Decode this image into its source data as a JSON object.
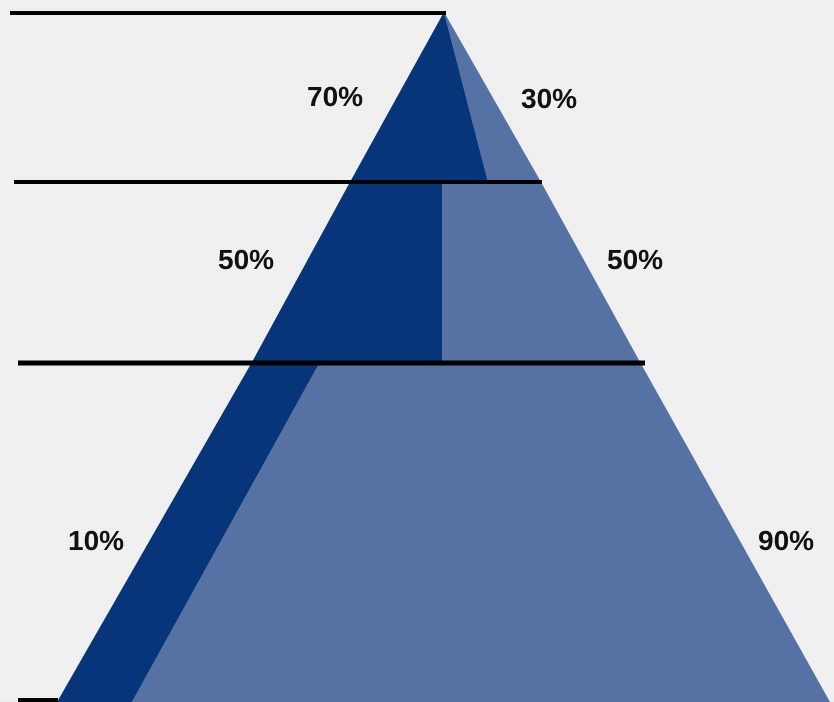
{
  "colors": {
    "dark": "#06357a",
    "light": "#5671a3",
    "line": "#000000",
    "text": "#111111"
  },
  "tiers": [
    {
      "left_label": "70%",
      "right_label": "30%",
      "dark_share": 0.7,
      "light_share": 0.3
    },
    {
      "left_label": "50%",
      "right_label": "50%",
      "dark_share": 0.5,
      "light_share": 0.5
    },
    {
      "left_label": "10%",
      "right_label": "90%",
      "dark_share": 0.1,
      "light_share": 0.9
    }
  ]
}
